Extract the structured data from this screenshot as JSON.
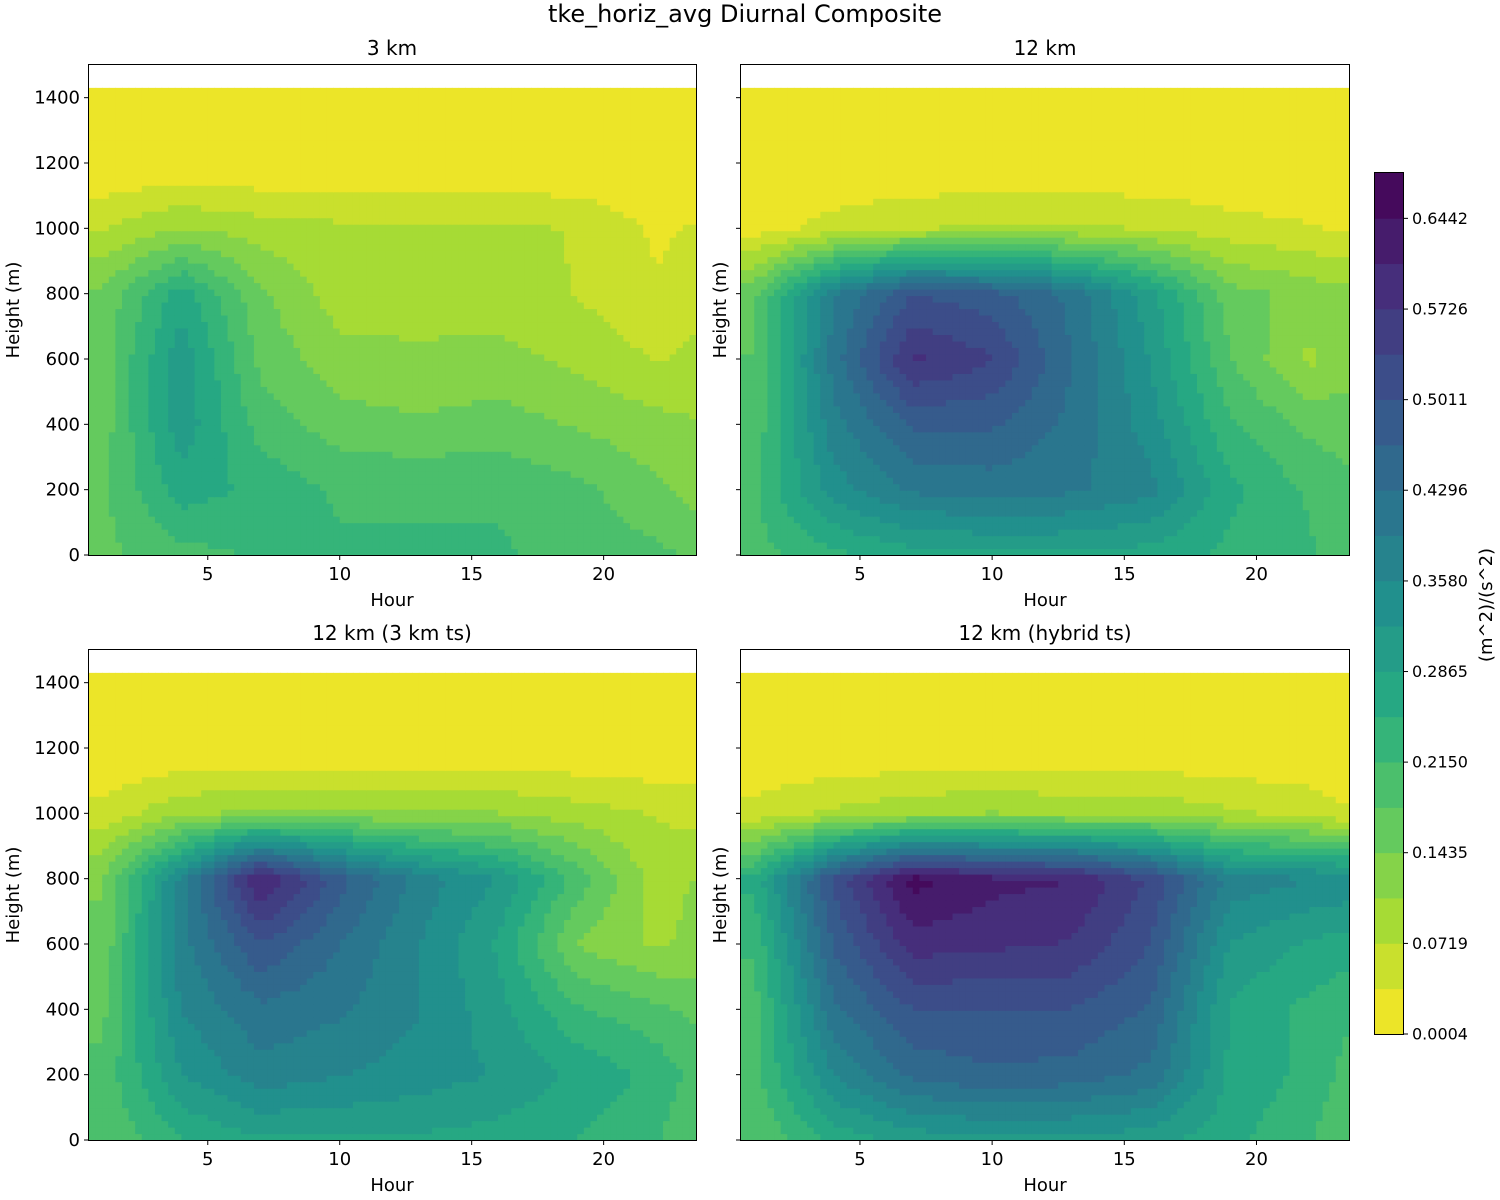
{
  "chart_data": {
    "type": "contourf",
    "suptitle": "tke_horiz_avg Diurnal Composite",
    "colormap": "viridis_r",
    "colorbar": {
      "label": "(m^2)/(s^2)",
      "min": 0.0004,
      "max": 0.68,
      "n_levels": 19,
      "tick_labels": [
        "0.0004",
        "0.0719",
        "0.1435",
        "0.2150",
        "0.2865",
        "0.3580",
        "0.4296",
        "0.5011",
        "0.5726",
        "0.6442"
      ]
    },
    "xlim": [
      0.5,
      23.5
    ],
    "ylim": [
      0,
      1500
    ],
    "top_of_data_m": 1430,
    "panels": [
      {
        "title": "3 km",
        "xlabel": "Hour",
        "ylabel": "Height (m)",
        "xticks": [
          "5",
          "10",
          "15",
          "20"
        ],
        "yticks": [
          "0",
          "200",
          "400",
          "600",
          "800",
          "1000",
          "1200",
          "1400"
        ],
        "hours": [
          1,
          4,
          7,
          10,
          13,
          16,
          19,
          22,
          23.5
        ],
        "heights": [
          0,
          200,
          400,
          600,
          800,
          1000,
          1200,
          1430
        ],
        "values": [
          [
            0.17,
            0.2,
            0.22,
            0.22,
            0.22,
            0.22,
            0.2,
            0.19,
            0.17
          ],
          [
            0.17,
            0.27,
            0.24,
            0.21,
            0.21,
            0.21,
            0.19,
            0.15,
            0.13
          ],
          [
            0.16,
            0.31,
            0.2,
            0.16,
            0.15,
            0.16,
            0.14,
            0.12,
            0.11
          ],
          [
            0.16,
            0.31,
            0.17,
            0.12,
            0.11,
            0.12,
            0.1,
            0.07,
            0.08
          ],
          [
            0.15,
            0.27,
            0.15,
            0.09,
            0.1,
            0.09,
            0.07,
            0.04,
            0.06
          ],
          [
            0.07,
            0.11,
            0.09,
            0.08,
            0.08,
            0.08,
            0.07,
            0.03,
            0.04
          ],
          [
            0.001,
            0.001,
            0.001,
            0.001,
            0.001,
            0.001,
            0.001,
            0.001,
            0.001
          ],
          [
            0.0004,
            0.0004,
            0.0004,
            0.0004,
            0.0004,
            0.0004,
            0.0004,
            0.0004,
            0.0004
          ]
        ]
      },
      {
        "title": "12 km",
        "xlabel": "Hour",
        "ylabel": "Height (m)",
        "xticks": [
          "5",
          "10",
          "15",
          "20"
        ],
        "yticks": [],
        "hours": [
          1,
          4,
          7,
          10,
          13,
          16,
          19,
          22,
          23.5
        ],
        "heights": [
          0,
          200,
          400,
          600,
          800,
          1000,
          1200,
          1430
        ],
        "values": [
          [
            0.2,
            0.24,
            0.27,
            0.28,
            0.28,
            0.27,
            0.24,
            0.22,
            0.2
          ],
          [
            0.21,
            0.34,
            0.4,
            0.41,
            0.4,
            0.37,
            0.26,
            0.21,
            0.19
          ],
          [
            0.19,
            0.38,
            0.47,
            0.47,
            0.42,
            0.34,
            0.22,
            0.17,
            0.16
          ],
          [
            0.18,
            0.41,
            0.58,
            0.54,
            0.43,
            0.32,
            0.18,
            0.1,
            0.13
          ],
          [
            0.17,
            0.39,
            0.5,
            0.48,
            0.42,
            0.3,
            0.16,
            0.13,
            0.12
          ],
          [
            0.02,
            0.05,
            0.07,
            0.08,
            0.08,
            0.07,
            0.05,
            0.04,
            0.03
          ],
          [
            0.001,
            0.001,
            0.001,
            0.001,
            0.001,
            0.001,
            0.001,
            0.001,
            0.001
          ],
          [
            0.0004,
            0.0004,
            0.0004,
            0.0004,
            0.0004,
            0.0004,
            0.0004,
            0.0004,
            0.0004
          ]
        ]
      },
      {
        "title": "12 km (3 km ts)",
        "xlabel": "Hour",
        "ylabel": "Height (m)",
        "xticks": [
          "5",
          "10",
          "15",
          "20"
        ],
        "yticks": [
          "0",
          "200",
          "400",
          "600",
          "800",
          "1000",
          "1200",
          "1400"
        ],
        "hours": [
          1,
          4,
          7,
          10,
          13,
          16,
          19,
          22,
          23.5
        ],
        "heights": [
          0,
          200,
          400,
          600,
          800,
          1000,
          1200,
          1430
        ],
        "values": [
          [
            0.18,
            0.25,
            0.28,
            0.28,
            0.28,
            0.27,
            0.25,
            0.22,
            0.18
          ],
          [
            0.19,
            0.32,
            0.38,
            0.36,
            0.34,
            0.32,
            0.28,
            0.24,
            0.2
          ],
          [
            0.17,
            0.36,
            0.42,
            0.4,
            0.36,
            0.3,
            0.22,
            0.19,
            0.17
          ],
          [
            0.15,
            0.38,
            0.5,
            0.43,
            0.36,
            0.28,
            0.14,
            0.1,
            0.12
          ],
          [
            0.14,
            0.37,
            0.62,
            0.48,
            0.38,
            0.32,
            0.2,
            0.09,
            0.11
          ],
          [
            0.05,
            0.1,
            0.12,
            0.12,
            0.11,
            0.11,
            0.09,
            0.07,
            0.06
          ],
          [
            0.001,
            0.001,
            0.001,
            0.001,
            0.001,
            0.001,
            0.001,
            0.001,
            0.001
          ],
          [
            0.0004,
            0.0004,
            0.0004,
            0.0004,
            0.0004,
            0.0004,
            0.0004,
            0.0004,
            0.0004
          ]
        ]
      },
      {
        "title": "12 km (hybrid ts)",
        "xlabel": "Hour",
        "ylabel": "Height (m)",
        "xticks": [
          "5",
          "10",
          "15",
          "20"
        ],
        "yticks": [],
        "hours": [
          1,
          4,
          7,
          10,
          13,
          16,
          19,
          22,
          23.5
        ],
        "heights": [
          0,
          200,
          400,
          600,
          800,
          1000,
          1200,
          1430
        ],
        "values": [
          [
            0.18,
            0.26,
            0.3,
            0.31,
            0.31,
            0.3,
            0.26,
            0.22,
            0.18
          ],
          [
            0.2,
            0.36,
            0.44,
            0.46,
            0.45,
            0.42,
            0.28,
            0.24,
            0.2
          ],
          [
            0.2,
            0.42,
            0.5,
            0.5,
            0.5,
            0.46,
            0.28,
            0.24,
            0.22
          ],
          [
            0.22,
            0.47,
            0.59,
            0.58,
            0.57,
            0.5,
            0.32,
            0.28,
            0.27
          ],
          [
            0.26,
            0.51,
            0.66,
            0.62,
            0.61,
            0.53,
            0.38,
            0.36,
            0.35
          ],
          [
            0.05,
            0.08,
            0.1,
            0.11,
            0.1,
            0.1,
            0.08,
            0.06,
            0.04
          ],
          [
            0.001,
            0.001,
            0.001,
            0.001,
            0.001,
            0.001,
            0.001,
            0.001,
            0.001
          ],
          [
            0.0004,
            0.0004,
            0.0004,
            0.0004,
            0.0004,
            0.0004,
            0.0004,
            0.0004,
            0.0004
          ]
        ]
      }
    ]
  }
}
